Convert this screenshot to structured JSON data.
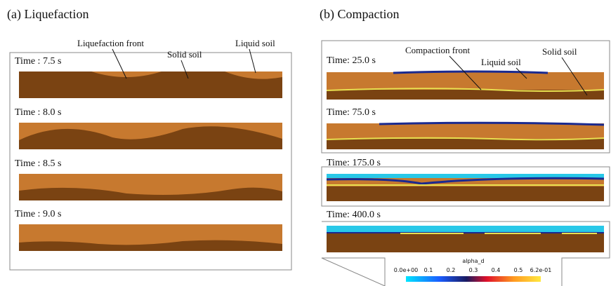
{
  "panels": [
    {
      "title": "(a) Liquefaction",
      "annotations": [
        "Liquefaction front",
        "Solid soil",
        "Liquid soil"
      ],
      "times": [
        "Time : 7.5 s",
        "Time : 8.0 s",
        "Time : 8.5 s",
        "Time : 9.0 s"
      ]
    },
    {
      "title": "(b) Compaction",
      "annotations": [
        "Compaction front",
        "Liquid soil",
        "Solid soil"
      ],
      "times": [
        "Time: 25.0 s",
        "Time: 75.0 s",
        "Time: 175.0 s",
        "Time: 400.0 s"
      ]
    }
  ],
  "colorbar": {
    "title": "alpha_d",
    "ticks": [
      "0.0e+00",
      "0.1",
      "0.2",
      "0.3",
      "0.4",
      "0.5",
      "6.2e-01"
    ]
  }
}
